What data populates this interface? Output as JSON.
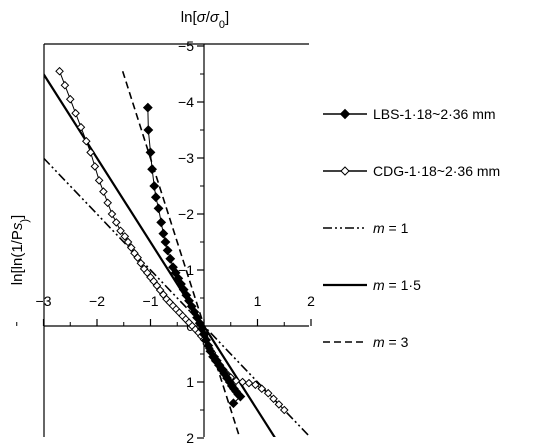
{
  "chart_data": {
    "type": "scatter",
    "title": "",
    "xlabel": "ln[σ/σ0]",
    "ylabel": "ln[ln(1/Ps)]",
    "xlim": [
      -3,
      2
    ],
    "ylim": [
      2,
      -5
    ],
    "y_axis_inverted": true,
    "x_ticks": [
      -3,
      -2,
      -1,
      0,
      1,
      2
    ],
    "y_ticks": [
      -5,
      -4,
      -3,
      -2,
      -1,
      0,
      1,
      2
    ],
    "grid": false,
    "legend_placement": "right",
    "series": [
      {
        "name": "LBS-1·18~2·36 mm",
        "kind": "markers-line",
        "marker": "filled-diamond",
        "color": "#000000",
        "x": [
          -1.05,
          -1.04,
          -1.0,
          -0.97,
          -0.93,
          -0.9,
          -0.85,
          -0.8,
          -0.76,
          -0.72,
          -0.68,
          -0.63,
          -0.58,
          -0.53,
          -0.48,
          -0.43,
          -0.38,
          -0.33,
          -0.28,
          -0.23,
          -0.18,
          -0.13,
          -0.08,
          -0.04,
          0.0,
          0.04,
          0.08,
          0.12,
          0.17,
          0.22,
          0.28,
          0.33,
          0.38,
          0.43,
          0.48,
          0.52,
          0.56,
          0.6,
          0.64,
          0.68,
          0.55
        ],
        "y": [
          -3.9,
          -3.5,
          -3.1,
          -2.8,
          -2.5,
          -2.3,
          -2.1,
          -1.85,
          -1.65,
          -1.5,
          -1.35,
          -1.2,
          -1.05,
          -0.95,
          -0.85,
          -0.75,
          -0.65,
          -0.55,
          -0.45,
          -0.35,
          -0.25,
          -0.15,
          -0.05,
          0.05,
          0.15,
          0.25,
          0.35,
          0.45,
          0.55,
          0.62,
          0.7,
          0.78,
          0.85,
          0.93,
          1.0,
          1.07,
          1.12,
          1.17,
          1.22,
          1.26,
          1.38
        ]
      },
      {
        "name": "CDG-1·18~2·36 mm",
        "kind": "markers-line",
        "marker": "open-diamond",
        "color": "#000000",
        "x": [
          -2.7,
          -2.6,
          -2.5,
          -2.4,
          -2.3,
          -2.2,
          -2.12,
          -2.04,
          -1.96,
          -1.88,
          -1.8,
          -1.72,
          -1.64,
          -1.56,
          -1.48,
          -1.42,
          -1.36,
          -1.3,
          -1.24,
          -1.18,
          -1.12,
          -1.06,
          -1.0,
          -0.94,
          -0.88,
          -0.82,
          -0.76,
          -0.7,
          -0.64,
          -0.58,
          -0.52,
          -0.46,
          -0.4,
          -0.34,
          -0.28,
          -0.22,
          -0.16,
          -0.1,
          -0.05,
          0.0,
          0.05,
          0.1,
          0.15,
          0.2,
          0.25,
          0.3,
          0.36,
          0.42,
          0.5,
          0.6,
          0.72,
          0.84,
          0.96,
          1.08,
          1.2,
          1.3,
          1.4,
          1.5
        ],
        "y": [
          -4.55,
          -4.3,
          -4.05,
          -3.8,
          -3.55,
          -3.3,
          -3.1,
          -2.85,
          -2.6,
          -2.4,
          -2.2,
          -2.0,
          -1.85,
          -1.7,
          -1.6,
          -1.5,
          -1.4,
          -1.3,
          -1.22,
          -1.12,
          -1.02,
          -0.95,
          -0.87,
          -0.8,
          -0.72,
          -0.64,
          -0.56,
          -0.48,
          -0.42,
          -0.36,
          -0.3,
          -0.24,
          -0.18,
          -0.12,
          -0.06,
          0.0,
          0.06,
          0.12,
          0.18,
          0.24,
          0.32,
          0.4,
          0.48,
          0.55,
          0.62,
          0.7,
          0.78,
          0.85,
          0.92,
          0.98,
          1.0,
          1.02,
          1.05,
          1.12,
          1.2,
          1.3,
          1.4,
          1.5
        ]
      },
      {
        "name": "m = 1",
        "kind": "reference-line",
        "dash": "dash-dot-dot",
        "color": "#000000",
        "x": [
          -3,
          2
        ],
        "y": [
          -3.0,
          2.0
        ]
      },
      {
        "name": "m = 1·5",
        "kind": "reference-line",
        "dash": "solid",
        "color": "#000000",
        "x": [
          -3,
          1.33
        ],
        "y": [
          -4.5,
          2.0
        ]
      },
      {
        "name": "m = 3",
        "kind": "reference-line",
        "dash": "dashed",
        "color": "#000000",
        "x": [
          -1.52,
          0.67
        ],
        "y": [
          -4.55,
          2.0
        ]
      }
    ]
  }
}
